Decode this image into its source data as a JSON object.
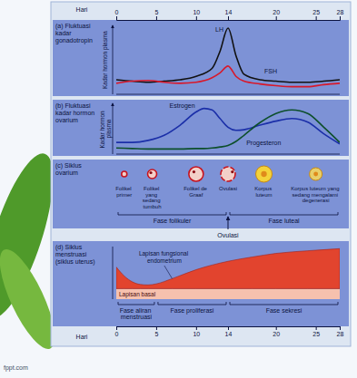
{
  "watermark": "fppt.com",
  "chart_data": [
    {
      "type": "line",
      "title": "(a) Fluktuasi kadar gonadotropin",
      "y_label": "Kadar hormon plasma",
      "x_label": "Hari",
      "xlim": [
        0,
        28
      ],
      "xticks": [
        0,
        5,
        10,
        14,
        20,
        25,
        28
      ],
      "ylim": [
        0,
        10
      ],
      "tick_labels": "x",
      "x": [
        0,
        2,
        4,
        6,
        8,
        10,
        12,
        13,
        14,
        15,
        16,
        18,
        20,
        22,
        24,
        26,
        28
      ],
      "series": [
        {
          "name": "LH",
          "color": "#111111",
          "values": [
            2.1,
            1.9,
            1.75,
            1.9,
            2.1,
            2.6,
            3.75,
            6.25,
            9.6,
            5.6,
            2.9,
            2.1,
            1.9,
            1.75,
            1.75,
            1.9,
            2.1
          ]
        },
        {
          "name": "FSH",
          "color": "#d8182a",
          "values": [
            1.6,
            1.9,
            2.0,
            1.75,
            1.6,
            1.75,
            2.4,
            3.1,
            4.1,
            2.6,
            1.9,
            1.5,
            1.25,
            1.1,
            1.1,
            1.4,
            1.6
          ]
        }
      ]
    },
    {
      "type": "line",
      "title": "(b) Fluktuasi kadar hormon ovarium",
      "y_label": "Kadar hormon plasma",
      "xlim": [
        0,
        28
      ],
      "ylim": [
        0,
        10
      ],
      "tick_labels": false,
      "x": [
        0,
        2,
        4,
        6,
        8,
        10,
        11,
        12,
        13,
        14,
        15,
        16,
        18,
        20,
        22,
        24,
        26,
        28
      ],
      "series": [
        {
          "name": "Estrogen",
          "color": "#1b2fa8",
          "values": [
            2.3,
            2.3,
            2.7,
            3.7,
            5.7,
            8.3,
            9.0,
            8.7,
            7.0,
            5.3,
            4.7,
            4.8,
            5.7,
            6.5,
            7.0,
            6.3,
            4.0,
            2.0
          ]
        },
        {
          "name": "Progesteron",
          "color": "#0d4f2b",
          "values": [
            1.2,
            1.1,
            1.0,
            1.0,
            1.0,
            1.1,
            1.1,
            1.2,
            1.4,
            1.7,
            2.5,
            3.7,
            6.2,
            8.0,
            8.7,
            8.0,
            5.3,
            2.3
          ]
        }
      ]
    },
    {
      "type": "diagram",
      "title": "(c) Siklus ovarium",
      "xlim": [
        0,
        28
      ],
      "stages": [
        {
          "label": "Folikel primer",
          "x": 1
        },
        {
          "label": "Folikel yang sedang tumbuh",
          "x": 4.5
        },
        {
          "label": "Folikel de Graaf",
          "x": 10
        },
        {
          "label": "Ovulasi",
          "x": 14
        },
        {
          "label": "Korpus luteum",
          "x": 18.5
        },
        {
          "label": "Korpus luteum yang sedang mengalami degenerasi",
          "x": 25
        }
      ],
      "phases": [
        {
          "label": "Fase folikuler",
          "start": 0,
          "end": 14
        },
        {
          "label": "Fase luteal",
          "start": 14,
          "end": 28
        }
      ],
      "annotation": {
        "label": "Ovulasi",
        "x": 14
      }
    },
    {
      "type": "area",
      "title": "(d) Siklus menstruasi (siklus uterus)",
      "x_label": "Hari",
      "xlim": [
        0,
        28
      ],
      "xticks": [
        0,
        5,
        10,
        14,
        20,
        25,
        28
      ],
      "ylim": [
        0,
        10
      ],
      "tick_labels": "x",
      "stacked": true,
      "x": [
        0,
        1,
        2,
        3,
        4,
        5,
        7,
        10,
        14,
        17,
        20,
        24,
        28
      ],
      "series": [
        {
          "name": "Lapisan basal",
          "color": "#f6c1ae",
          "values": [
            2,
            2,
            2,
            2,
            2,
            2,
            2,
            2,
            2,
            2,
            2,
            2,
            2
          ]
        },
        {
          "name": "Lapisan fungsional endometrium",
          "color": "#e2442e",
          "values": [
            4.1,
            2.4,
            1.3,
            0.8,
            0.7,
            0.9,
            1.9,
            3.6,
            5.2,
            6.0,
            6.7,
            7.2,
            7.6
          ]
        }
      ],
      "phases": [
        {
          "label": "Fase aliran menstruasi",
          "start": 0,
          "end": 5
        },
        {
          "label": "Fase proliferasi",
          "start": 5,
          "end": 14
        },
        {
          "label": "Fase sekresi",
          "start": 14,
          "end": 28
        }
      ]
    }
  ]
}
